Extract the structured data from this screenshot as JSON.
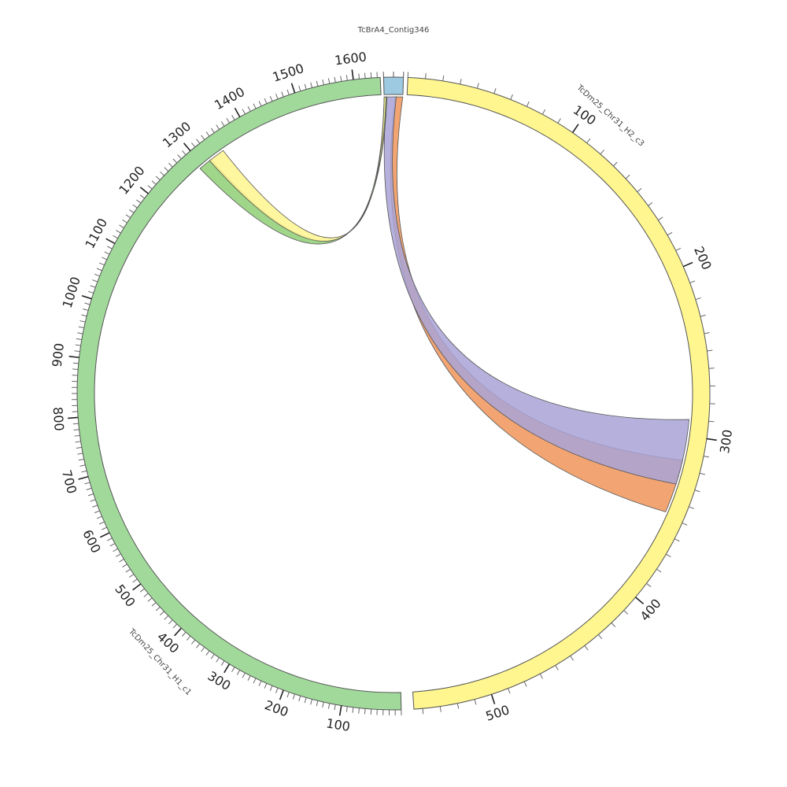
{
  "chart_data": {
    "type": "circos",
    "contigs": [
      {
        "id": "contig",
        "name": "TcBrA4_Contig346",
        "label": "TcBrA4_Contig346",
        "length": 20,
        "color": "#9ecae1",
        "tick_labels": []
      },
      {
        "id": "h2",
        "name": "TcDm25_Chr31_H2_c3",
        "label": "TcDm25_Chr31_H2_c3",
        "length": 545,
        "color": "#fff68f",
        "tick_labels": [
          "100",
          "200",
          "300",
          "400",
          "500"
        ]
      },
      {
        "id": "h1",
        "name": "TcDm25_Chr31_H1_c1",
        "label": "TcDm25_Chr31_H1_c1",
        "length": 1645,
        "color": "#a1d99b",
        "tick_labels": [
          "100",
          "200",
          "300",
          "400",
          "500",
          "600",
          "700",
          "800",
          "900",
          "1000",
          "1100",
          "1200",
          "1300",
          "1400",
          "1500",
          "1600"
        ]
      }
    ],
    "links": [
      {
        "source": "contig",
        "source_range": [
          12,
          20
        ],
        "target": "h2",
        "target_range": [
          315,
          348
        ],
        "color": "#f0955a"
      },
      {
        "source": "contig",
        "source_range": [
          3,
          13
        ],
        "target": "h2",
        "target_range": [
          290,
          330
        ],
        "color": "#a9a3d6"
      },
      {
        "source": "contig",
        "source_range": [
          0,
          3
        ],
        "target": "h1",
        "target_range": [
          1293,
          1318
        ],
        "color": "#8fcf75"
      },
      {
        "source": "contig",
        "source_range": [
          0,
          2
        ],
        "target": "h1",
        "target_range": [
          1315,
          1345
        ],
        "color": "#fff68f"
      }
    ]
  }
}
